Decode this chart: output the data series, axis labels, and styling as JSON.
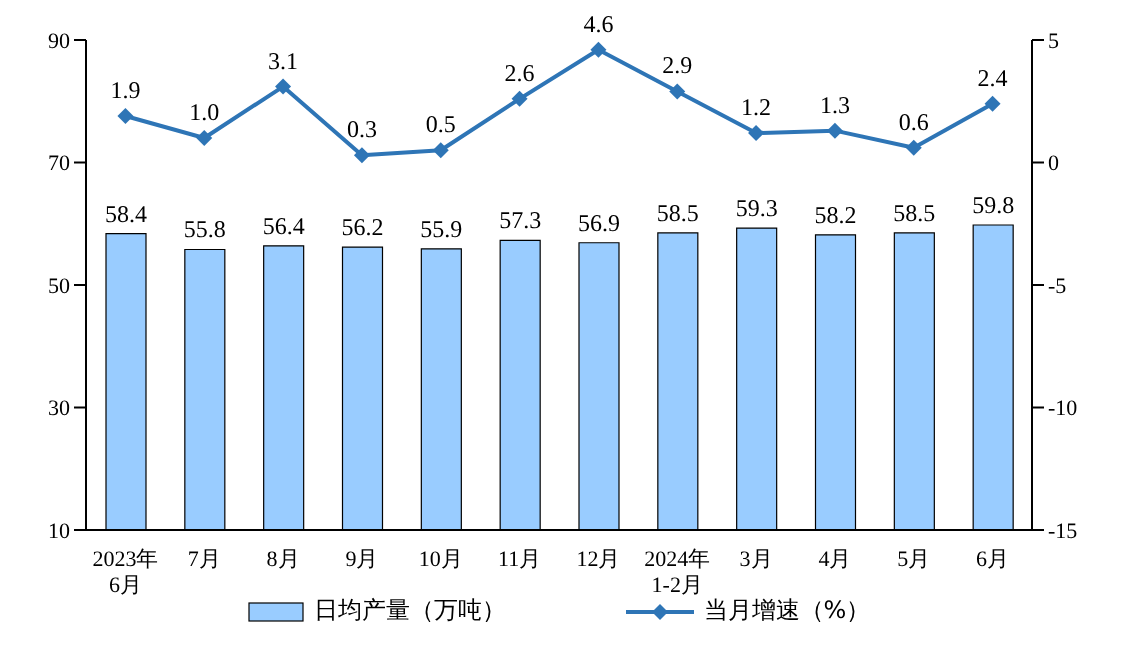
{
  "chart_data": {
    "type": "bar",
    "categories": [
      "2023年\n6月",
      "7月",
      "8月",
      "9月",
      "10月",
      "11月",
      "12月",
      "2024年\n1-2月",
      "3月",
      "4月",
      "5月",
      "6月"
    ],
    "series": [
      {
        "name": "日均产量（万吨）",
        "color": "#99ccff",
        "values": [
          58.4,
          55.8,
          56.4,
          56.2,
          55.9,
          57.3,
          56.9,
          58.5,
          59.3,
          58.2,
          58.5,
          59.8
        ]
      },
      {
        "name": "当月增速（%）",
        "type": "line",
        "axis": "y2",
        "color": "#2e75b6",
        "marker": "diamond",
        "values": [
          1.9,
          1.0,
          3.1,
          0.3,
          0.5,
          2.6,
          4.6,
          2.9,
          1.2,
          1.3,
          0.6,
          2.4
        ],
        "value_labels": [
          "1.9",
          "1.0",
          "3.1",
          "0.3",
          "0.5",
          "2.6",
          "4.6",
          "2.9",
          "1.2",
          "1.3",
          "0.6",
          "2.4"
        ]
      }
    ],
    "ylim": [
      10,
      90
    ],
    "yticks": [
      10,
      30,
      50,
      70,
      90
    ],
    "y2lim": [
      -15,
      5
    ],
    "y2ticks": [
      -15,
      -10,
      -5,
      0,
      5
    ],
    "data_labels": true,
    "legend": "bottom"
  }
}
